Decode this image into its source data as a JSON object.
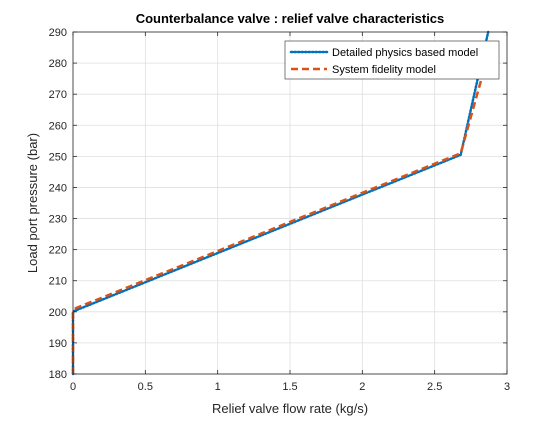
{
  "chart_data": {
    "type": "line",
    "title": "Counterbalance valve : relief valve characteristics",
    "xlabel": "Relief valve flow rate (kg/s)",
    "ylabel": "Load port pressure (bar)",
    "xlim": [
      0,
      3
    ],
    "ylim": [
      180,
      290
    ],
    "xticks": [
      0,
      0.5,
      1,
      1.5,
      2,
      2.5,
      3
    ],
    "xtick_labels": [
      "0",
      "0.5",
      "1",
      "1.5",
      "2",
      "2.5",
      "3"
    ],
    "yticks": [
      180,
      190,
      200,
      210,
      220,
      230,
      240,
      250,
      260,
      270,
      280,
      290
    ],
    "ytick_labels": [
      "180",
      "190",
      "200",
      "210",
      "220",
      "230",
      "240",
      "250",
      "260",
      "270",
      "280",
      "290"
    ],
    "grid": true,
    "legend_position": "top-right",
    "series": [
      {
        "name": "Detailed physics based model",
        "color": "#0072BD",
        "style": "dotted",
        "x": [
          0,
          0,
          0.01,
          2.68,
          2.87
        ],
        "y": [
          180,
          200,
          200.3,
          250.5,
          290
        ]
      },
      {
        "name": "System fidelity model",
        "color": "#D95319",
        "style": "dashed",
        "x": [
          0,
          0,
          0.01,
          2.68,
          2.83
        ],
        "y": [
          180,
          200,
          201,
          251,
          276
        ]
      }
    ]
  }
}
